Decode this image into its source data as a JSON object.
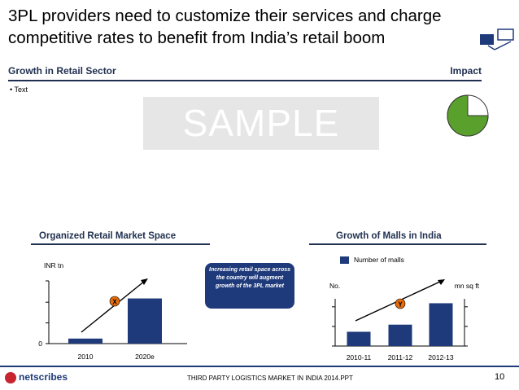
{
  "slide": {
    "title_line1": "3PL providers need to customize their services and charge",
    "title_line2": "competitive rates to benefit from India’s retail boom",
    "section_left": "Growth in Retail Sector",
    "section_right": "Impact",
    "bullet": "• Text",
    "watermark": "SAMPLE",
    "callout": "Increasing retail space across the country will augment growth of the 3PL market",
    "impact_fraction": 0.75
  },
  "footer": {
    "logo": "netscribes",
    "doc_name": "THIRD PARTY LOGISTICS MARKET IN INDIA 2014.PPT",
    "page": "10"
  },
  "colors": {
    "navy": "#1f3a7a",
    "header_text": "#1f2f4f",
    "orange": "#e46c0a",
    "pie_green": "#5aa02c"
  },
  "chart_data": [
    {
      "type": "bar",
      "title": "Organized Retail Market Space",
      "ylabel": "INR tn",
      "ytick_labels": [
        "0"
      ],
      "categories": [
        "2010",
        "2020e"
      ],
      "values": [
        0.4,
        3.6
      ],
      "ylim": [
        0,
        5
      ],
      "annotation": "X"
    },
    {
      "type": "bar",
      "title": "Growth of Malls in India",
      "ylabel_left": "No.",
      "ylabel_right": "mn sq ft",
      "legend": [
        "Number of malls"
      ],
      "series": [
        {
          "name": "Number of malls",
          "values": [
            1.2,
            1.8,
            3.6
          ]
        }
      ],
      "categories": [
        "2010-11",
        "2011-12",
        "2012-13"
      ],
      "ylim": [
        0,
        5
      ],
      "annotation": "Y"
    }
  ]
}
